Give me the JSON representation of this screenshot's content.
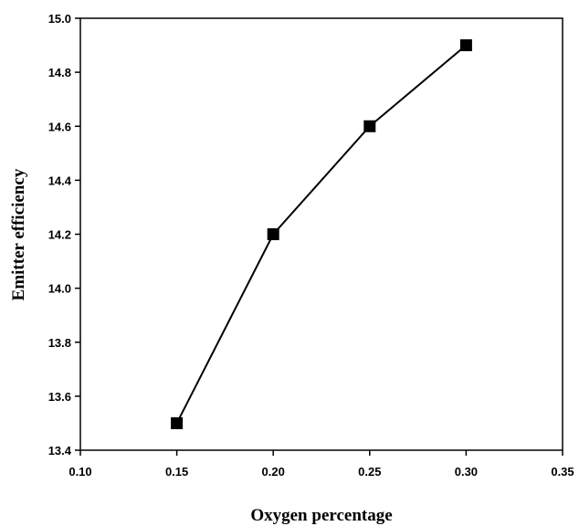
{
  "chart_data": {
    "type": "line",
    "title": "",
    "xlabel": "Oxygen percentage",
    "ylabel": "Emitter efficiency",
    "xlim": [
      0.1,
      0.35
    ],
    "ylim": [
      13.4,
      15.0
    ],
    "x_ticks": [
      "0.10",
      "0.15",
      "0.20",
      "0.25",
      "0.30",
      "0.35"
    ],
    "y_ticks": [
      "13.4",
      "13.6",
      "13.8",
      "14.0",
      "14.2",
      "14.4",
      "14.6",
      "14.8",
      "15.0"
    ],
    "grid": false,
    "legend": "none",
    "marker": "square",
    "line_color": "#000000",
    "series": [
      {
        "x": [
          0.15,
          0.2,
          0.25,
          0.3
        ],
        "y": [
          13.5,
          14.2,
          14.6,
          14.9
        ]
      }
    ]
  }
}
